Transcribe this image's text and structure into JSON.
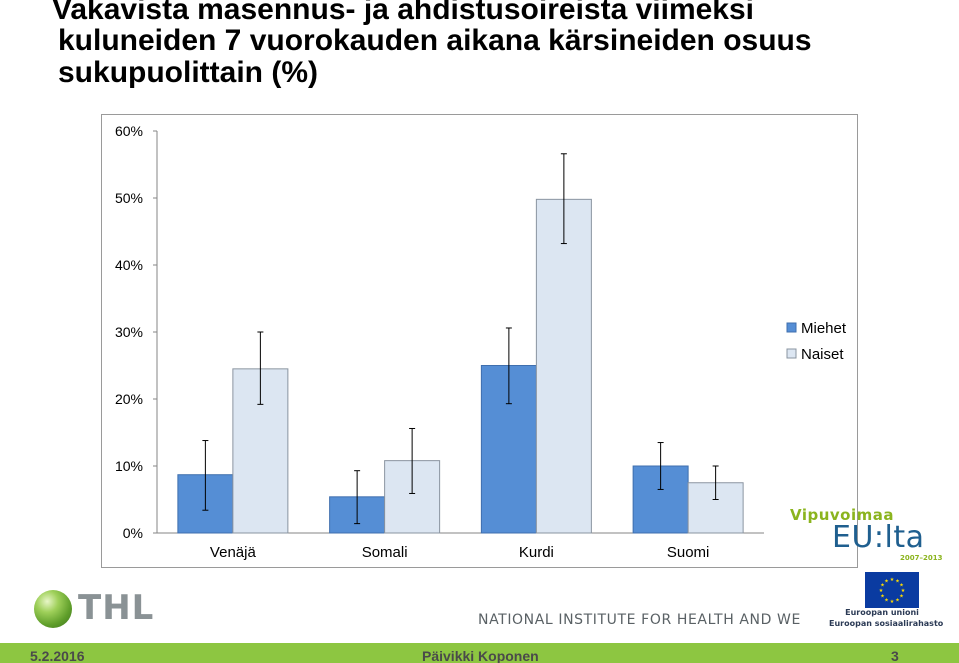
{
  "title": {
    "line1": "Vakavista masennus- ja ahdistusoireista viimeksi",
    "line2": "kuluneiden 7 vuorokauden aikana kärsineiden osuus",
    "line3": "sukupuolittain (%)"
  },
  "chart_data": {
    "type": "bar",
    "categories": [
      "Venäjä",
      "Somali",
      "Kurdi",
      "Suomi"
    ],
    "series": [
      {
        "name": "Miehet",
        "color": "#558ed5",
        "values": [
          8.7,
          5.4,
          25.0,
          10.0
        ],
        "error_low": [
          3.4,
          1.4,
          19.3,
          6.5
        ],
        "error_high": [
          13.8,
          9.3,
          30.6,
          13.5
        ]
      },
      {
        "name": "Naiset",
        "color": "#dce6f2",
        "values": [
          24.5,
          10.8,
          49.8,
          7.5
        ],
        "error_low": [
          19.2,
          5.9,
          43.2,
          5.0
        ],
        "error_high": [
          30.0,
          15.6,
          56.6,
          10.0
        ]
      }
    ],
    "ylim": [
      0,
      60
    ],
    "yticks": [
      "0%",
      "10%",
      "20%",
      "30%",
      "40%",
      "50%",
      "60%"
    ],
    "ytick_values": [
      0,
      10,
      20,
      30,
      40,
      50,
      60
    ],
    "legend_position": "right",
    "grid": false
  },
  "logos": {
    "vipuvoimaa_top": "Vipuvoimaa",
    "vipuvoimaa_main": "EU:lta",
    "vipuvoimaa_years": "2007–2013",
    "eu_line1": "Euroopan unioni",
    "eu_line2": "Euroopan sosiaalirahasto",
    "thl": "THL",
    "institute": "NATIONAL INSTITUTE FOR HEALTH AND WELFARE"
  },
  "footer": {
    "date": "5.2.2016",
    "author": "Päivikki Koponen",
    "page": "3"
  }
}
